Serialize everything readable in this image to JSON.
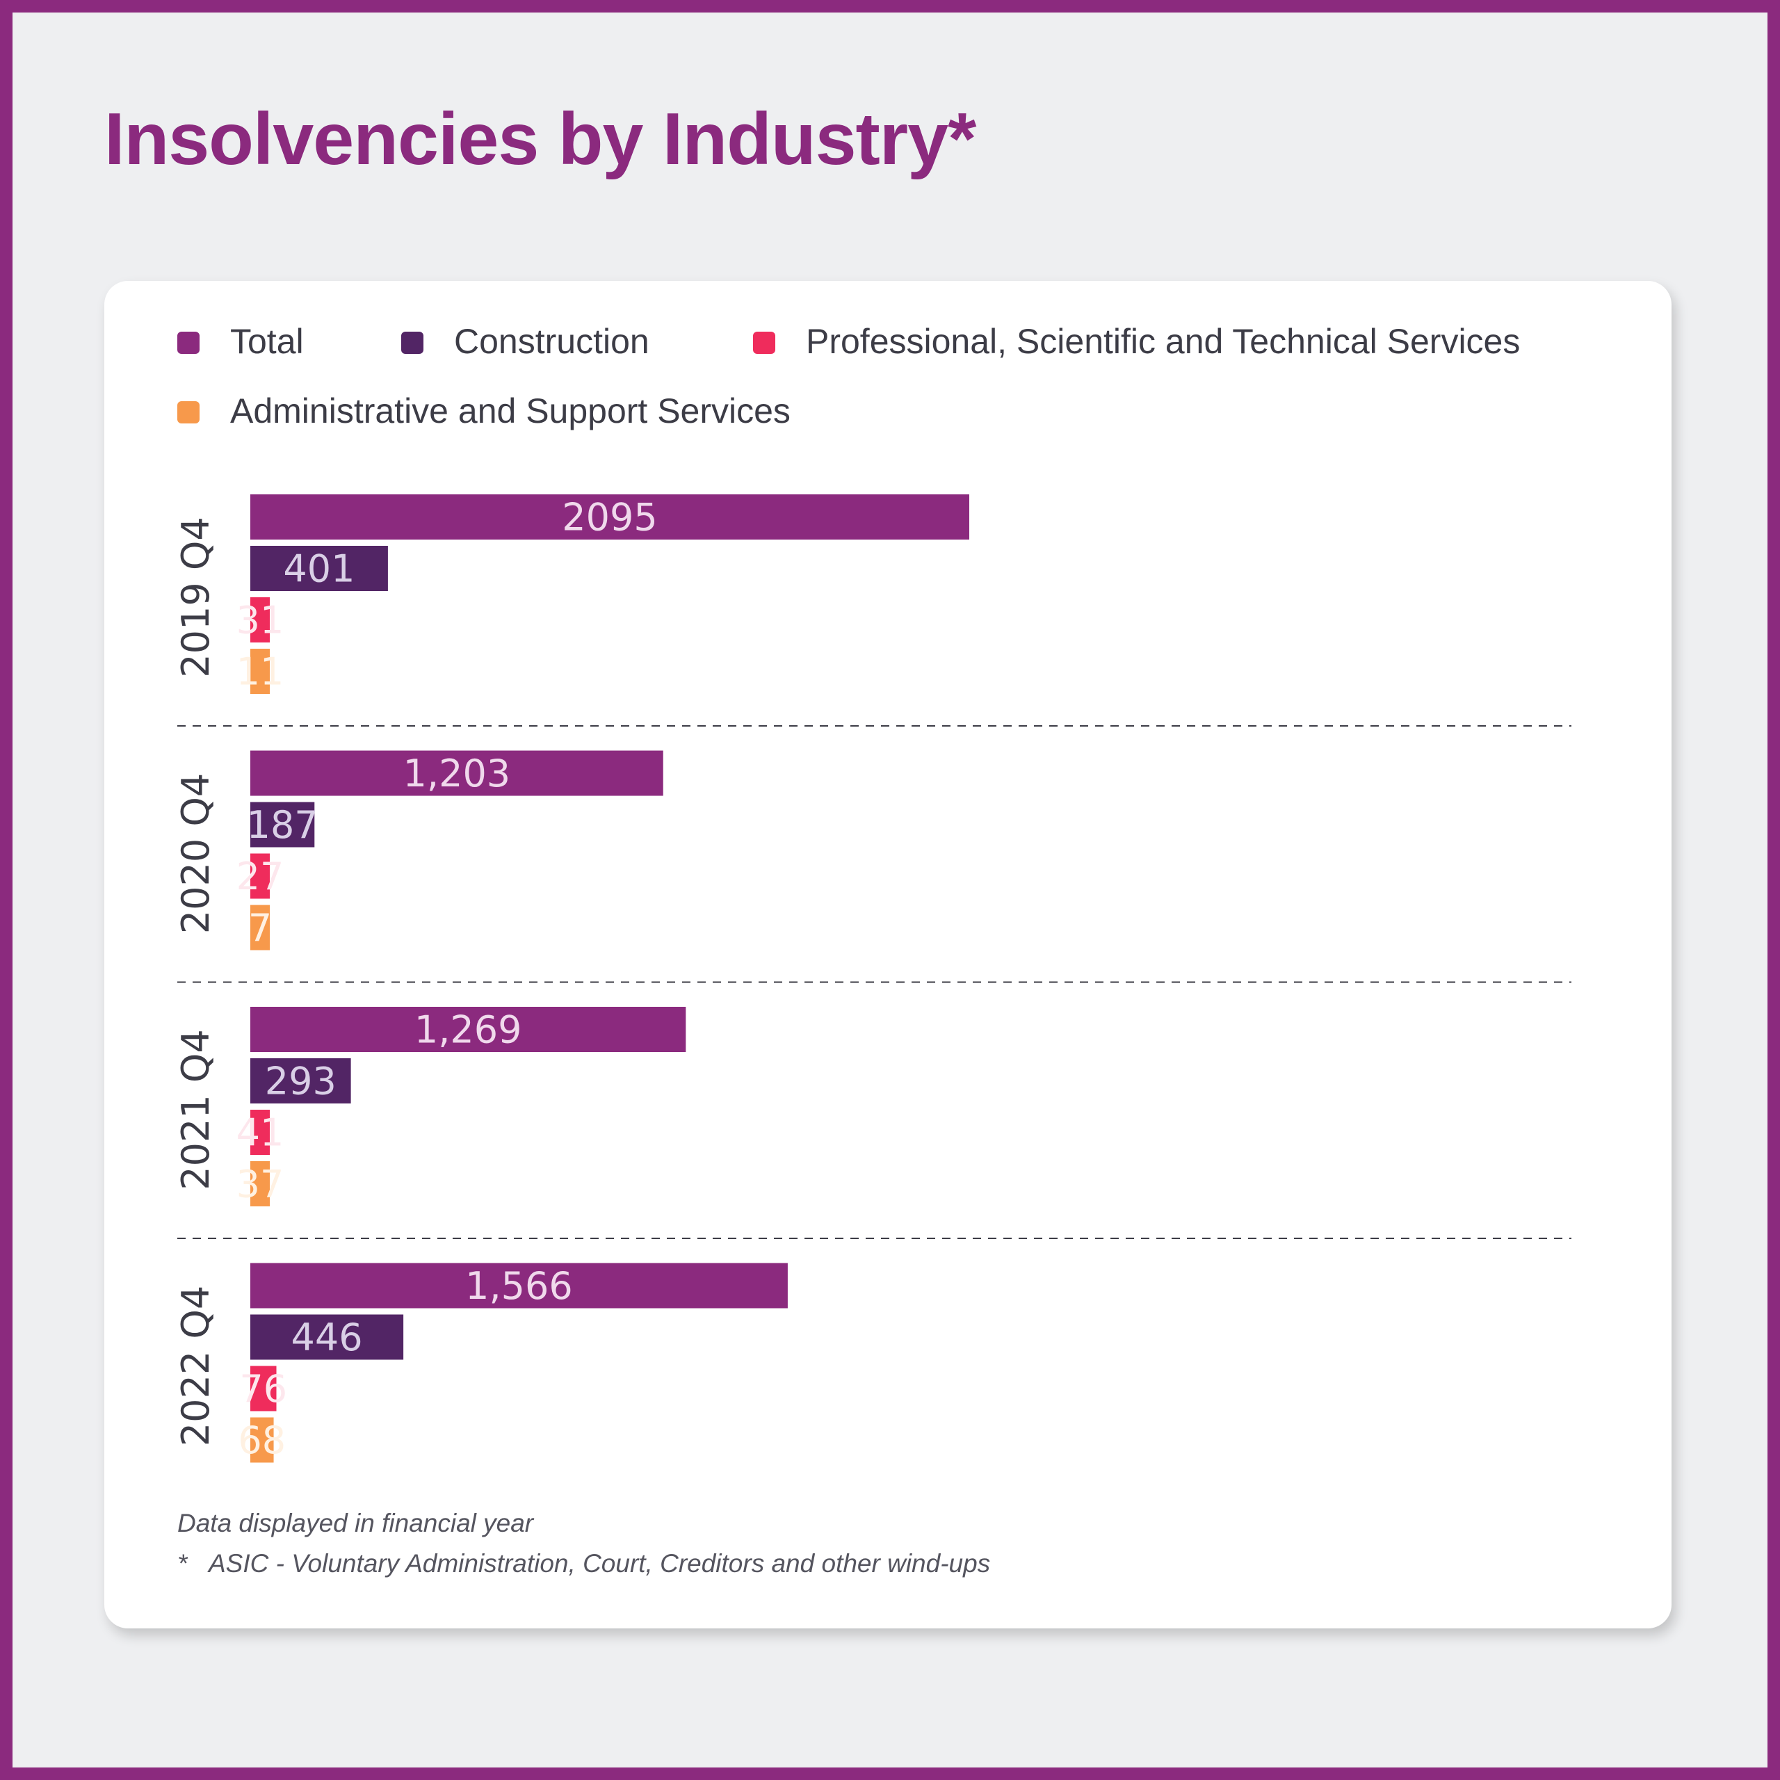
{
  "title": "Insolvencies by Industry*",
  "legend": [
    {
      "label": "Total",
      "color": "#8b2a7e"
    },
    {
      "label": "Construction",
      "color": "#522565"
    },
    {
      "label": "Professional, Scientific and Technical Services",
      "color": "#ef2c5c"
    },
    {
      "label": "Administrative and Support Services",
      "color": "#f7994b"
    }
  ],
  "footnotes": {
    "note": "Data displayed in financial year",
    "star": "*",
    "source": "ASIC - Voluntary Administration, Court, Creditors and other wind-ups"
  },
  "chart_data": {
    "type": "bar",
    "orientation": "horizontal",
    "title": "Insolvencies by Industry*",
    "categories": [
      "2019 Q4",
      "2020 Q4",
      "2021 Q4",
      "2022 Q4"
    ],
    "series": [
      {
        "name": "Total",
        "color": "#8b2a7e",
        "values": [
          2095,
          1203,
          1269,
          1566
        ],
        "labels": [
          "2095",
          "1,203",
          "1,269",
          "1,566"
        ]
      },
      {
        "name": "Construction",
        "color": "#522565",
        "values": [
          401,
          187,
          293,
          446
        ],
        "labels": [
          "401",
          "187",
          "293",
          "446"
        ]
      },
      {
        "name": "Professional, Scientific and Technical Services",
        "color": "#ef2c5c",
        "values": [
          31,
          27,
          41,
          76
        ],
        "labels": [
          "31",
          "27",
          "41",
          "76"
        ]
      },
      {
        "name": "Administrative and Support Services",
        "color": "#f7994b",
        "values": [
          11,
          7,
          37,
          68
        ],
        "labels": [
          "11",
          "7",
          "37",
          "68"
        ]
      }
    ],
    "legend_position": "top",
    "grid": false,
    "group_separators": "dashed"
  }
}
